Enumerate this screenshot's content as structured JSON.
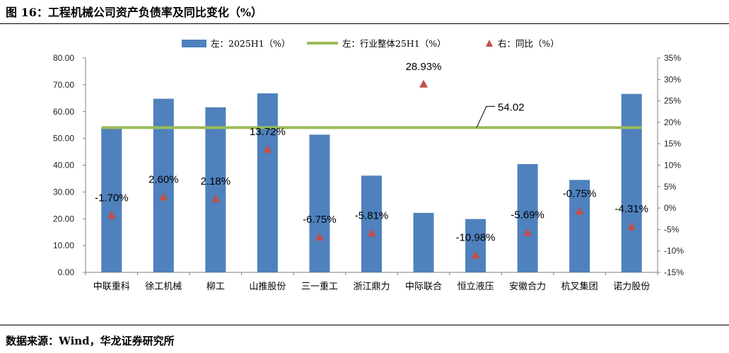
{
  "header": {
    "title": "图 16：工程机械公司资产负债率及同比变化（%）"
  },
  "footer": {
    "source": "数据来源：Wind，华龙证券研究所"
  },
  "colors": {
    "bar": "#4F81BD",
    "line": "#9BBB59",
    "marker": "#C0504D"
  },
  "chart_data": {
    "type": "bar",
    "title": "图 16：工程机械公司资产负债率及同比变化（%）",
    "categories": [
      "中联重科",
      "徐工机械",
      "柳工",
      "山推股份",
      "三一重工",
      "浙江鼎力",
      "中际联合",
      "恒立液压",
      "安徽合力",
      "杭叉集团",
      "诺力股份"
    ],
    "series": [
      {
        "name": "左：2025H1（%）",
        "type": "bar",
        "axis": "left",
        "values": [
          54.0,
          64.8,
          61.6,
          66.8,
          51.4,
          36.1,
          22.2,
          19.9,
          40.4,
          34.5,
          66.6
        ]
      },
      {
        "name": "左：行业整体25H1（%）",
        "type": "line",
        "axis": "left",
        "values": [
          54.02,
          54.02,
          54.02,
          54.02,
          54.02,
          54.02,
          54.02,
          54.02,
          54.02,
          54.02,
          54.02
        ],
        "annotation": "54.02"
      },
      {
        "name": "右：同比（%）",
        "type": "scatter",
        "axis": "right",
        "values": [
          -1.7,
          2.6,
          2.18,
          13.72,
          -6.75,
          -5.81,
          28.93,
          -10.98,
          -5.69,
          -0.75,
          -4.31
        ],
        "labels": [
          "-1.70%",
          "2.60%",
          "2.18%",
          "13.72%",
          "-6.75%",
          "-5.81%",
          "28.93%",
          "-10.98%",
          "-5.69%",
          "-0.75%",
          "-4.31%"
        ]
      }
    ],
    "y_left": {
      "min": 0,
      "max": 80,
      "step": 10,
      "ticks": [
        "0.00",
        "10.00",
        "20.00",
        "30.00",
        "40.00",
        "50.00",
        "60.00",
        "70.00",
        "80.00"
      ]
    },
    "y_right": {
      "min": -15,
      "max": 35,
      "step": 5,
      "ticks": [
        "-15%",
        "-10%",
        "-5%",
        "0%",
        "5%",
        "10%",
        "15%",
        "20%",
        "25%",
        "30%",
        "35%"
      ]
    },
    "grid": false,
    "legend": "top-center"
  }
}
